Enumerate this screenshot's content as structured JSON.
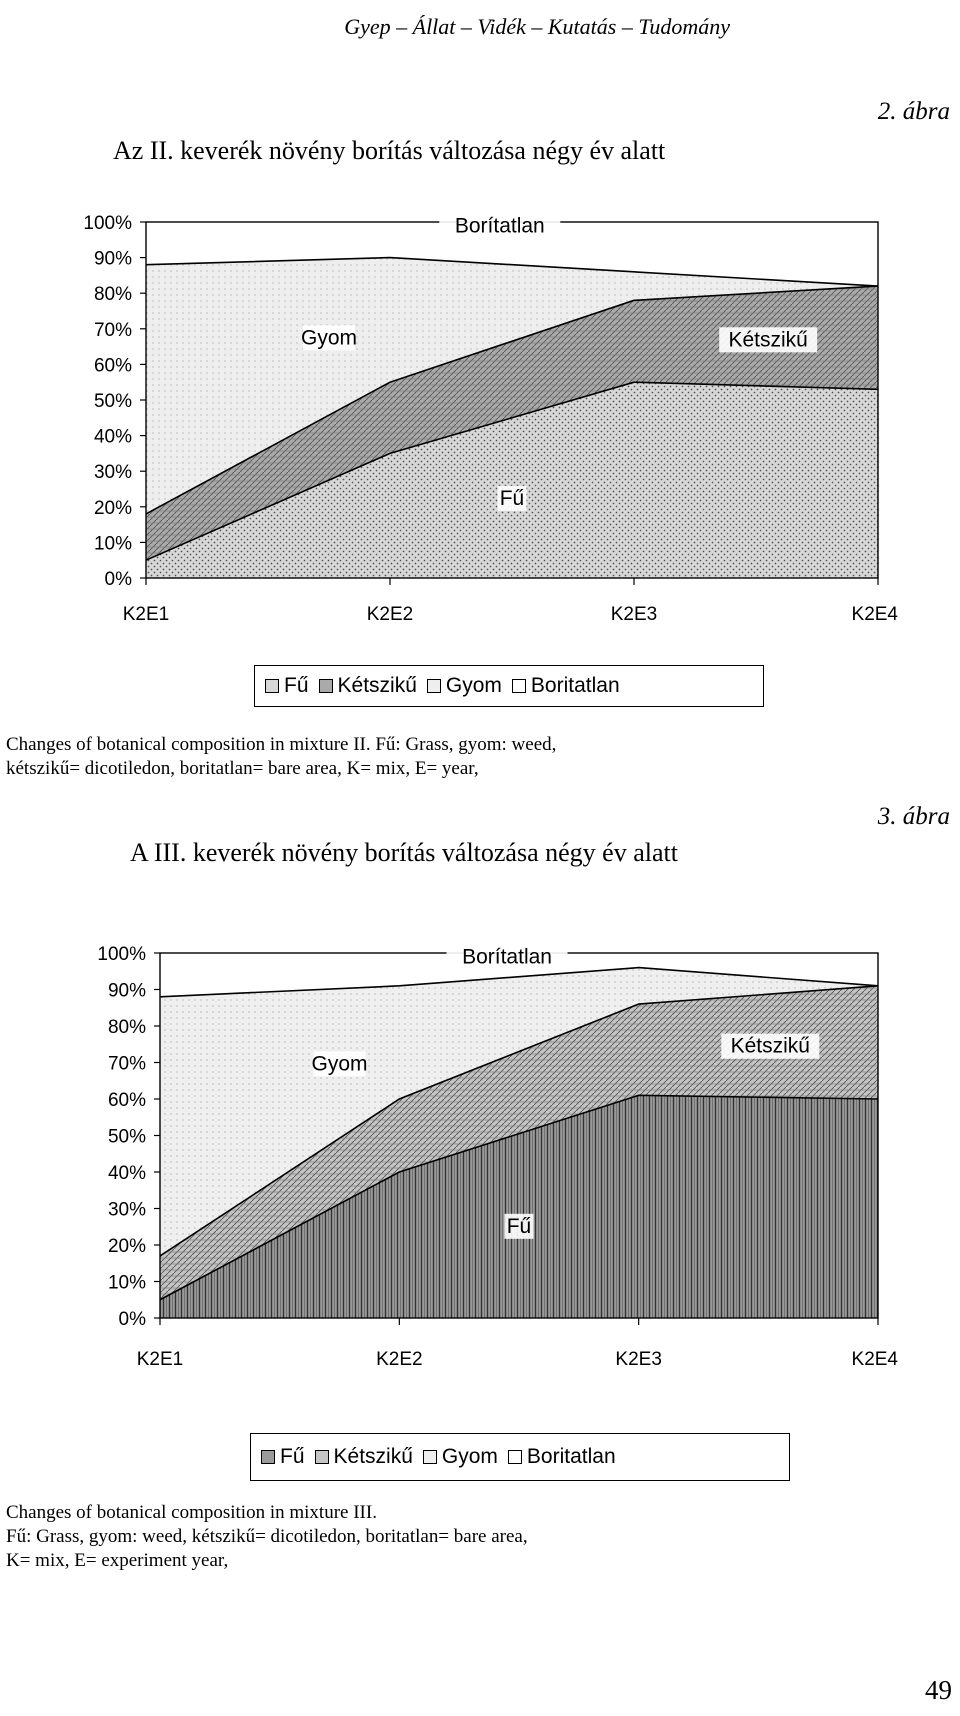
{
  "header": "Gyep – Állat – Vidék – Kutatás – Tudomány",
  "page_number": "49",
  "figures": [
    {
      "figure_label": "2. ábra",
      "title": "Az II. keverék növény borítás változása négy év alatt",
      "caption_lines": [
        "Changes of botanical composition in mixture II. Fű: Grass, gyom: weed,",
        "kétszikű= dicotiledon, boritatlan= bare area, K= mix, E= year,"
      ]
    },
    {
      "figure_label": "3. ábra",
      "title": "A III. keverék növény borítás változása négy év alatt",
      "caption_lines": [
        "Changes of botanical composition in mixture III.",
        "Fű: Grass, gyom: weed, kétszikű= dicotiledon, boritatlan= bare area,",
        "K= mix, E= experiment year,"
      ]
    }
  ],
  "chart_data": [
    {
      "type": "area",
      "stacked": true,
      "categories": [
        "K2E1",
        "K2E2",
        "K2E3",
        "K2E4"
      ],
      "yticks": [
        "0%",
        "10%",
        "20%",
        "30%",
        "40%",
        "50%",
        "60%",
        "70%",
        "80%",
        "90%",
        "100%"
      ],
      "ylim": [
        0,
        100
      ],
      "series": [
        {
          "name": "Fű",
          "values": [
            5,
            35,
            55,
            53
          ],
          "color": "#d8d8d8"
        },
        {
          "name": "Kétszikű",
          "values": [
            13,
            20,
            23,
            29
          ],
          "color": "#aaaaaa"
        },
        {
          "name": "Gyom",
          "values": [
            70,
            35,
            8,
            0
          ],
          "color": "#eeeeee"
        },
        {
          "name": "Borítatlan",
          "values": [
            12,
            10,
            14,
            18
          ],
          "color": "#ffffff"
        }
      ],
      "area_labels": [
        {
          "text": "Borítatlan",
          "series": "Borítatlan"
        },
        {
          "text": "Gyom",
          "series": "Gyom"
        },
        {
          "text": "Kétszikű",
          "series": "Kétszikű"
        },
        {
          "text": "Fű",
          "series": "Fű"
        }
      ],
      "legend_labels": [
        "Fű",
        "Kétszikű",
        "Gyom",
        "Boritatlan"
      ],
      "legend_position": "bottom"
    },
    {
      "type": "area",
      "stacked": true,
      "categories": [
        "K2E1",
        "K2E2",
        "K2E3",
        "K2E4"
      ],
      "yticks": [
        "0%",
        "10%",
        "20%",
        "30%",
        "40%",
        "50%",
        "60%",
        "70%",
        "80%",
        "90%",
        "100%"
      ],
      "ylim": [
        0,
        100
      ],
      "series": [
        {
          "name": "Fű",
          "values": [
            5,
            40,
            61,
            60
          ],
          "color": "#9a9a9a"
        },
        {
          "name": "Kétszikű",
          "values": [
            12,
            20,
            25,
            31
          ],
          "color": "#c4c4c4"
        },
        {
          "name": "Gyom",
          "values": [
            71,
            31,
            10,
            0
          ],
          "color": "#efefef"
        },
        {
          "name": "Borítatlan",
          "values": [
            12,
            9,
            4,
            9
          ],
          "color": "#ffffff"
        }
      ],
      "area_labels": [
        {
          "text": "Borítatlan",
          "series": "Borítatlan"
        },
        {
          "text": "Gyom",
          "series": "Gyom"
        },
        {
          "text": "Kétszikű",
          "series": "Kétszikű"
        },
        {
          "text": "Fű",
          "series": "Fű"
        }
      ],
      "legend_labels": [
        "Fű",
        "Kétszikű",
        "Gyom",
        "Boritatlan"
      ],
      "legend_position": "bottom"
    }
  ]
}
